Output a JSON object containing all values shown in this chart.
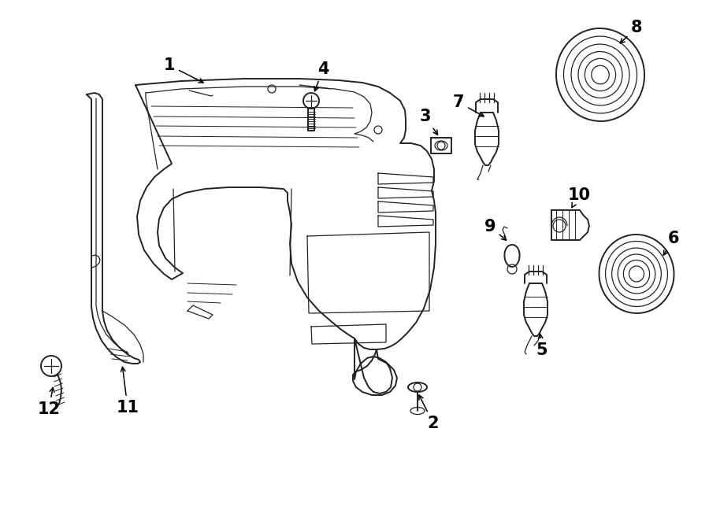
{
  "background_color": "#ffffff",
  "line_color": "#222222",
  "label_color": "#000000",
  "label_fontsize": 15,
  "fig_width": 9.0,
  "fig_height": 6.62,
  "dpi": 100
}
